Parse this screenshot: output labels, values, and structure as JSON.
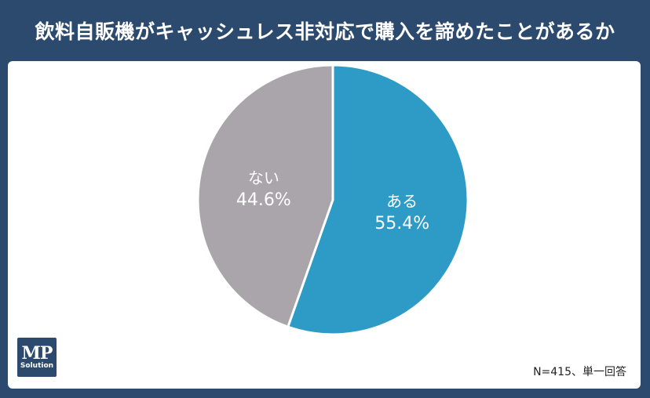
{
  "title": "飲料自販機がキャッシュレス非対応で購入を諦めたことがあるか",
  "note": "N=415、単一回答",
  "logo": {
    "line1": "MP",
    "line2": "Solution"
  },
  "colors": {
    "header_bg": "#2c4a6e",
    "slice_yes": "#2e9ac6",
    "slice_no": "#a9a5ab"
  },
  "chart_data": {
    "type": "pie",
    "title": "飲料自販機がキャッシュレス非対応で購入を諦めたことがあるか",
    "slices": [
      {
        "label": "ある",
        "value": 55.4,
        "display": "55.4%",
        "color": "#2e9ac6"
      },
      {
        "label": "ない",
        "value": 44.6,
        "display": "44.6%",
        "color": "#a9a5ab"
      }
    ],
    "start": "12 o'clock",
    "direction": "clockwise",
    "n": 415
  }
}
